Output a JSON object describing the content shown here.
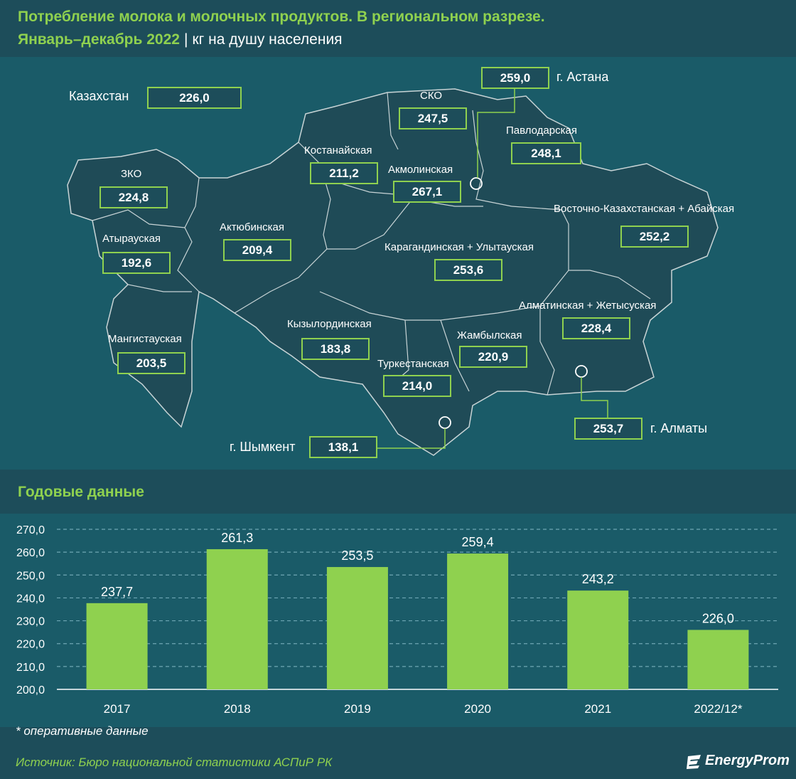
{
  "header": {
    "title_line1": "Потребление молока и молочных продуктов. В региональном разрезе.",
    "title_line2": "Январь–декабрь 2022",
    "unit": "кг на душу населения"
  },
  "map": {
    "national": {
      "label": "Казахстан",
      "value": "226,0"
    },
    "regions": [
      {
        "label": "СКО",
        "value": "247,5"
      },
      {
        "label": "г. Астана",
        "value": "259,0"
      },
      {
        "label": "Павлодарская",
        "value": "248,1"
      },
      {
        "label": "Костанайская",
        "value": "211,2"
      },
      {
        "label": "Акмолинская",
        "value": "267,1"
      },
      {
        "label": "ЗКО",
        "value": "224,8"
      },
      {
        "label": "Восточно-Казахстанская + Абайская",
        "value": "252,2"
      },
      {
        "label": "Актюбинская",
        "value": "209,4"
      },
      {
        "label": "Атырауская",
        "value": "192,6"
      },
      {
        "label": "Карагандинская + Улытауская",
        "value": "253,6"
      },
      {
        "label": "Алматинская + Жетысуская",
        "value": "228,4"
      },
      {
        "label": "Кызылординская",
        "value": "183,8"
      },
      {
        "label": "Мангистауская",
        "value": "203,5"
      },
      {
        "label": "Жамбылская",
        "value": "220,9"
      },
      {
        "label": "Туркестанская",
        "value": "214,0"
      },
      {
        "label": "г. Алматы",
        "value": "253,7"
      },
      {
        "label": "г. Шымкент",
        "value": "138,1"
      }
    ]
  },
  "section_title": "Годовые данные",
  "chart_data": {
    "type": "bar",
    "categories": [
      "2017",
      "2018",
      "2019",
      "2020",
      "2021",
      "2022/12*"
    ],
    "values": [
      237.7,
      261.3,
      253.5,
      259.4,
      243.2,
      226.0
    ],
    "value_labels": [
      "237,7",
      "261,3",
      "253,5",
      "259,4",
      "243,2",
      "226,0"
    ],
    "yticks": [
      "200,0",
      "210,0",
      "220,0",
      "230,0",
      "240,0",
      "250,0",
      "260,0",
      "270,0"
    ],
    "ylim": [
      200,
      270
    ],
    "grid": true,
    "bar_color": "#8fd14f",
    "title": "",
    "xlabel": "",
    "ylabel": ""
  },
  "footnote": "* оперативные данные",
  "source": "Источник: Бюро национальной статистики АСПиР РК",
  "logo": "EnergyProm",
  "colors": {
    "accent": "#8fd14f",
    "background": "#1d4d5a",
    "panel": "#1a5b68",
    "map_fill": "#1f4b57"
  }
}
